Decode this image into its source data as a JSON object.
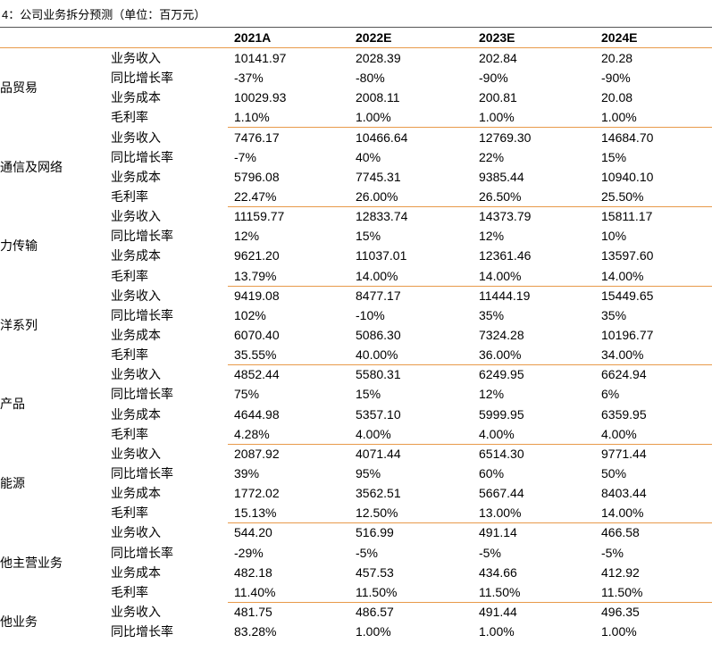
{
  "title": "4：公司业务拆分预测（单位：百万元）",
  "table": {
    "columns": [
      "2021A",
      "2022E",
      "2023E",
      "2024E"
    ],
    "segments": [
      {
        "name": "品贸易",
        "rows": [
          [
            "业务收入",
            "10141.97",
            "2028.39",
            "202.84",
            "20.28"
          ],
          [
            "同比增长率",
            "-37%",
            "-80%",
            "-90%",
            "-90%"
          ],
          [
            "业务成本",
            "10029.93",
            "2008.11",
            "200.81",
            "20.08"
          ],
          [
            "毛利率",
            "1.10%",
            "1.00%",
            "1.00%",
            "1.00%"
          ]
        ]
      },
      {
        "name": "通信及网络",
        "rows": [
          [
            "业务收入",
            "7476.17",
            "10466.64",
            "12769.30",
            "14684.70"
          ],
          [
            "同比增长率",
            "-7%",
            "40%",
            "22%",
            "15%"
          ],
          [
            "业务成本",
            "5796.08",
            "7745.31",
            "9385.44",
            "10940.10"
          ],
          [
            "毛利率",
            "22.47%",
            "26.00%",
            "26.50%",
            "25.50%"
          ]
        ]
      },
      {
        "name": "力传输",
        "rows": [
          [
            "业务收入",
            "11159.77",
            "12833.74",
            "14373.79",
            "15811.17"
          ],
          [
            "同比增长率",
            "12%",
            "15%",
            "12%",
            "10%"
          ],
          [
            "业务成本",
            "9621.20",
            "11037.01",
            "12361.46",
            "13597.60"
          ],
          [
            "毛利率",
            "13.79%",
            "14.00%",
            "14.00%",
            "14.00%"
          ]
        ]
      },
      {
        "name": "洋系列",
        "rows": [
          [
            "业务收入",
            "9419.08",
            "8477.17",
            "11444.19",
            "15449.65"
          ],
          [
            "同比增长率",
            "102%",
            "-10%",
            "35%",
            "35%"
          ],
          [
            "业务成本",
            "6070.40",
            "5086.30",
            "7324.28",
            "10196.77"
          ],
          [
            "毛利率",
            "35.55%",
            "40.00%",
            "36.00%",
            "34.00%"
          ]
        ]
      },
      {
        "name": "产品",
        "rows": [
          [
            "业务收入",
            "4852.44",
            "5580.31",
            "6249.95",
            "6624.94"
          ],
          [
            "同比增长率",
            "75%",
            "15%",
            "12%",
            "6%"
          ],
          [
            "业务成本",
            "4644.98",
            "5357.10",
            "5999.95",
            "6359.95"
          ],
          [
            "毛利率",
            "4.28%",
            "4.00%",
            "4.00%",
            "4.00%"
          ]
        ]
      },
      {
        "name": "能源",
        "rows": [
          [
            "业务收入",
            "2087.92",
            "4071.44",
            "6514.30",
            "9771.44"
          ],
          [
            "同比增长率",
            "39%",
            "95%",
            "60%",
            "50%"
          ],
          [
            "业务成本",
            "1772.02",
            "3562.51",
            "5667.44",
            "8403.44"
          ],
          [
            "毛利率",
            "15.13%",
            "12.50%",
            "13.00%",
            "14.00%"
          ]
        ]
      },
      {
        "name": "他主营业务",
        "rows": [
          [
            "业务收入",
            "544.20",
            "516.99",
            "491.14",
            "466.58"
          ],
          [
            "同比增长率",
            "-29%",
            "-5%",
            "-5%",
            "-5%"
          ],
          [
            "业务成本",
            "482.18",
            "457.53",
            "434.66",
            "412.92"
          ],
          [
            "毛利率",
            "11.40%",
            "11.50%",
            "11.50%",
            "11.50%"
          ]
        ]
      },
      {
        "name": "他业务",
        "rows": [
          [
            "业务收入",
            "481.75",
            "486.57",
            "491.44",
            "496.35"
          ],
          [
            "同比增长率",
            "83.28%",
            "1.00%",
            "1.00%",
            "1.00%"
          ]
        ]
      }
    ]
  }
}
